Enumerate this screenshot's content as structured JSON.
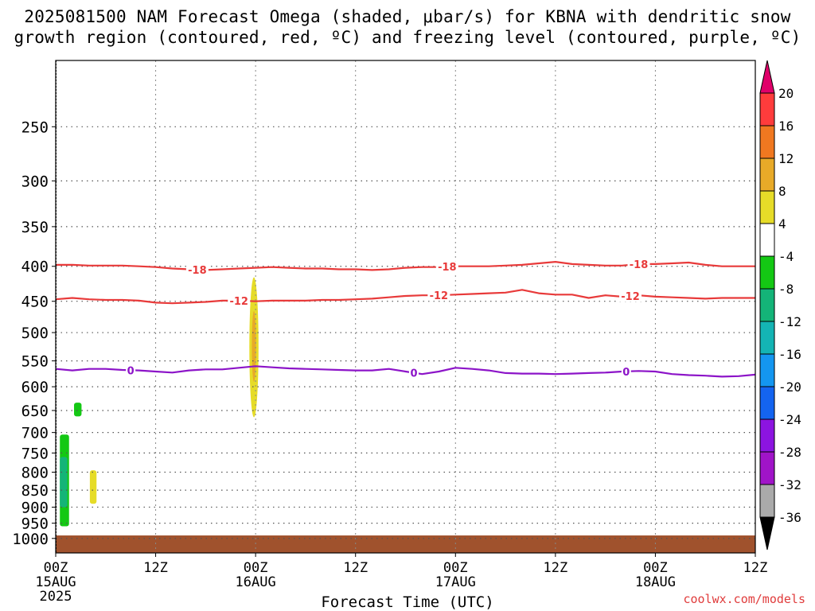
{
  "title": {
    "line1": "2025081500 NAM Forecast Omega (shaded, μbar/s) for KBNA with dendritic snow",
    "line2": "growth region (contoured, red, ºC) and freezing level (contoured, purple, ºC)"
  },
  "credit": "coolwx.com/models",
  "chart_data": {
    "type": "time-height cross section (filled contour + line contours)",
    "xlabel": "Forecast Time (UTC)",
    "ylabel": "",
    "x_axis": {
      "range_hours": [
        0,
        84
      ],
      "ticks": [
        {
          "hour": 0,
          "label": "00Z",
          "sub": "15AUG",
          "sub2": "2025"
        },
        {
          "hour": 12,
          "label": "12Z",
          "sub": "",
          "sub2": ""
        },
        {
          "hour": 24,
          "label": "00Z",
          "sub": "16AUG",
          "sub2": ""
        },
        {
          "hour": 36,
          "label": "12Z",
          "sub": "",
          "sub2": ""
        },
        {
          "hour": 48,
          "label": "00Z",
          "sub": "17AUG",
          "sub2": ""
        },
        {
          "hour": 60,
          "label": "12Z",
          "sub": "",
          "sub2": ""
        },
        {
          "hour": 72,
          "label": "00Z",
          "sub": "18AUG",
          "sub2": ""
        },
        {
          "hour": 84,
          "label": "12Z",
          "sub": "",
          "sub2": ""
        }
      ]
    },
    "y_axis": {
      "units": "hPa",
      "scale": "log-pressure (inverted)",
      "range": [
        1050,
        200
      ],
      "ticks": [
        250,
        300,
        350,
        400,
        450,
        500,
        550,
        600,
        650,
        700,
        750,
        800,
        850,
        900,
        950,
        1000
      ]
    },
    "grid": true,
    "colorbar": {
      "labels": [
        "20",
        "16",
        "12",
        "8",
        "4",
        "-4",
        "-8",
        "-12",
        "-16",
        "-20",
        "-24",
        "-28",
        "-32",
        "-36"
      ],
      "colors": [
        "#e0006a",
        "#ff3c3c",
        "#f07820",
        "#e8aa28",
        "#e6dc28",
        "#ffffff",
        "#14c814",
        "#14b478",
        "#14b4b4",
        "#1496f0",
        "#1464f0",
        "#8c14e0",
        "#a014c8",
        "#aaaaaa",
        "#000000"
      ]
    },
    "surface_fill_color": "#a0522d",
    "omega_regions": [
      {
        "color": "#e6dc28",
        "shape": "ellipse",
        "center": [
          23.8,
          540
        ],
        "half_hours": 0.55,
        "pmin": 415,
        "pmax": 665
      },
      {
        "color": "#e8aa28",
        "shape": "ellipse",
        "center": [
          23.8,
          525
        ],
        "half_hours": 0.25,
        "pmin": 465,
        "pmax": 590
      },
      {
        "color": "#14c814",
        "shape": "rect",
        "hours": [
          0.5,
          1.6
        ],
        "pmin": 705,
        "pmax": 960
      },
      {
        "color": "#14b478",
        "shape": "rect",
        "hours": [
          0.5,
          1.4
        ],
        "pmin": 760,
        "pmax": 900
      },
      {
        "color": "#14c814",
        "shape": "rect",
        "hours": [
          2.2,
          3.1
        ],
        "pmin": 633,
        "pmax": 663
      },
      {
        "color": "#e6dc28",
        "shape": "rect",
        "hours": [
          4.1,
          4.9
        ],
        "pmin": 795,
        "pmax": 890
      }
    ],
    "contours": [
      {
        "value": -18,
        "color": "#e83a3a",
        "label": "-18",
        "x": [
          0,
          2,
          4,
          6,
          8,
          10,
          12,
          14,
          16,
          18,
          20,
          22,
          24,
          26,
          28,
          30,
          32,
          34,
          36,
          38,
          40,
          42,
          44,
          46,
          48,
          50,
          52,
          54,
          56,
          58,
          60,
          62,
          64,
          66,
          68,
          70,
          72,
          74,
          76,
          78,
          80,
          82,
          84
        ],
        "y": [
          398,
          398,
          399,
          399,
          399,
          400,
          401,
          403,
          404,
          405,
          404,
          403,
          402,
          401,
          402,
          403,
          403,
          404,
          404,
          405,
          404,
          402,
          401,
          401,
          400,
          400,
          400,
          399,
          398,
          396,
          394,
          397,
          398,
          399,
          399,
          397,
          397,
          396,
          395,
          398,
          400,
          400,
          400
        ],
        "label_hours": [
          17.0,
          47.0,
          70.0
        ]
      },
      {
        "value": -12,
        "color": "#e83a3a",
        "label": "-12",
        "x": [
          0,
          2,
          4,
          6,
          8,
          10,
          12,
          14,
          16,
          18,
          20,
          22,
          24,
          26,
          28,
          30,
          32,
          34,
          36,
          38,
          40,
          42,
          44,
          46,
          48,
          50,
          52,
          54,
          56,
          58,
          60,
          62,
          64,
          66,
          68,
          70,
          72,
          74,
          76,
          78,
          80,
          82,
          84
        ],
        "y": [
          447,
          445,
          447,
          448,
          448,
          449,
          452,
          453,
          452,
          451,
          449,
          449,
          450,
          449,
          449,
          449,
          448,
          448,
          447,
          446,
          444,
          442,
          441,
          441,
          440,
          439,
          438,
          437,
          433,
          438,
          440,
          440,
          445,
          441,
          443,
          441,
          443,
          444,
          445,
          446,
          445,
          445,
          445
        ],
        "label_hours": [
          22.0,
          46.0,
          69.0
        ]
      },
      {
        "value": 0,
        "color": "#8c14c8",
        "label": "0",
        "x": [
          0,
          2,
          4,
          6,
          8,
          10,
          12,
          14,
          16,
          18,
          20,
          22,
          24,
          26,
          28,
          30,
          32,
          34,
          36,
          38,
          40,
          42,
          44,
          46,
          48,
          50,
          52,
          54,
          56,
          58,
          60,
          62,
          64,
          66,
          68,
          70,
          72,
          74,
          76,
          78,
          80,
          82,
          84
        ],
        "y": [
          565,
          568,
          565,
          565,
          567,
          568,
          570,
          572,
          568,
          566,
          566,
          563,
          560,
          562,
          564,
          565,
          566,
          567,
          568,
          568,
          565,
          570,
          575,
          570,
          563,
          565,
          568,
          573,
          574,
          574,
          575,
          574,
          573,
          572,
          570,
          569,
          570,
          575,
          577,
          578,
          580,
          579,
          576
        ],
        "label_hours": [
          9.0,
          43.0,
          68.5
        ]
      }
    ]
  }
}
